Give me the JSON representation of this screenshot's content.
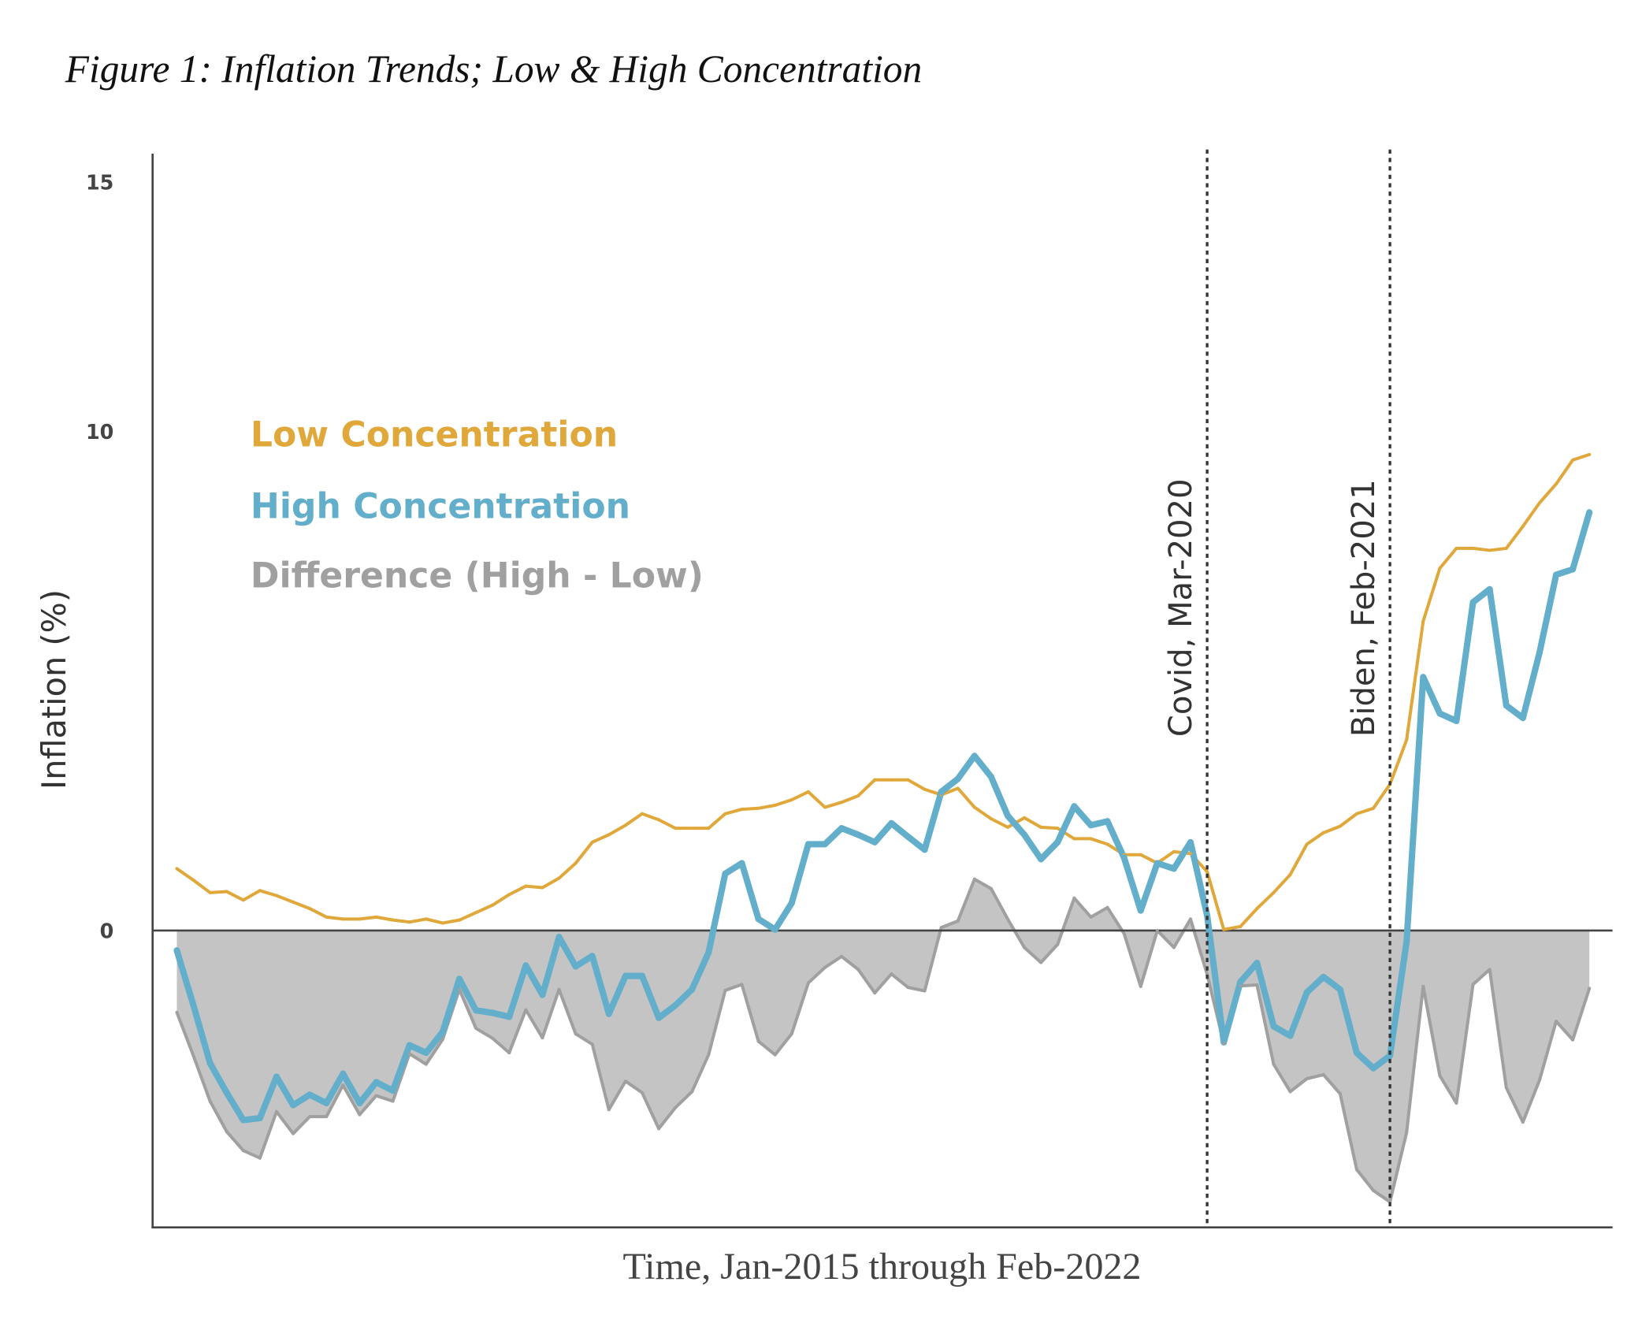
{
  "chart_data": {
    "type": "line",
    "title": "Figure 1: Inflation Trends; Low & High Concentration",
    "xlabel": "Time, Jan-2015 through Feb-2022",
    "ylabel": "Inflation (%)",
    "x_start": "2015-01",
    "x_end": "2022-02",
    "x_frequency": "monthly",
    "ylim": [
      -6,
      15.5
    ],
    "yticks": [
      0,
      10,
      15
    ],
    "ytick_labels": [
      "0",
      "10",
      "15"
    ],
    "grid": false,
    "legend_placement": "upper-left",
    "series": [
      {
        "name": "Low Concentration",
        "color": "#E0A83A",
        "values": [
          1.24,
          1.01,
          0.76,
          0.78,
          0.61,
          0.8,
          0.7,
          0.57,
          0.44,
          0.27,
          0.23,
          0.23,
          0.27,
          0.21,
          0.17,
          0.23,
          0.15,
          0.21,
          0.36,
          0.51,
          0.72,
          0.89,
          0.86,
          1.05,
          1.35,
          1.77,
          1.92,
          2.11,
          2.34,
          2.22,
          2.05,
          2.05,
          2.05,
          2.34,
          2.43,
          2.45,
          2.51,
          2.62,
          2.78,
          2.47,
          2.57,
          2.7,
          3.02,
          3.02,
          3.02,
          2.83,
          2.72,
          2.85,
          2.47,
          2.24,
          2.07,
          2.26,
          2.07,
          2.05,
          1.84,
          1.84,
          1.73,
          1.52,
          1.52,
          1.35,
          1.58,
          1.54,
          1.18,
          0.02,
          0.08,
          0.44,
          0.76,
          1.12,
          1.73,
          1.96,
          2.09,
          2.34,
          2.45,
          2.93,
          3.82,
          6.2,
          7.26,
          7.66,
          7.66,
          7.62,
          7.66,
          8.1,
          8.57,
          8.95,
          9.43,
          9.54
        ]
      },
      {
        "name": "High Concentration",
        "color": "#62AECB",
        "values": [
          -0.4,
          -1.5,
          -2.66,
          -3.25,
          -3.8,
          -3.76,
          -2.93,
          -3.5,
          -3.29,
          -3.46,
          -2.87,
          -3.46,
          -3.04,
          -3.21,
          -2.3,
          -2.45,
          -2.03,
          -0.97,
          -1.6,
          -1.65,
          -1.73,
          -0.7,
          -1.29,
          -0.13,
          -0.72,
          -0.51,
          -1.67,
          -0.91,
          -0.91,
          -1.75,
          -1.5,
          -1.18,
          -0.44,
          1.14,
          1.35,
          0.23,
          0.02,
          0.55,
          1.73,
          1.73,
          2.05,
          1.92,
          1.77,
          2.15,
          1.88,
          1.62,
          2.78,
          3.04,
          3.5,
          3.08,
          2.3,
          1.92,
          1.43,
          1.77,
          2.49,
          2.11,
          2.19,
          1.46,
          0.4,
          1.35,
          1.24,
          1.77,
          0.3,
          -2.24,
          -1.03,
          -0.65,
          -1.92,
          -2.11,
          -1.24,
          -0.93,
          -1.18,
          -2.45,
          -2.76,
          -2.51,
          -0.23,
          5.08,
          4.35,
          4.2,
          6.58,
          6.84,
          4.51,
          4.26,
          5.57,
          7.13,
          7.24,
          8.38
        ]
      },
      {
        "name": "Difference (High - Low)",
        "color": "#A0A0A0",
        "fill": "#C4C4C4",
        "derived": "High Concentration minus Low Concentration"
      }
    ],
    "events": [
      {
        "label": "Covid, Mar-2020",
        "date": "2020-03",
        "style": "dotted"
      },
      {
        "label": "Biden, Feb-2021",
        "date": "2021-02",
        "style": "dotted"
      }
    ]
  }
}
